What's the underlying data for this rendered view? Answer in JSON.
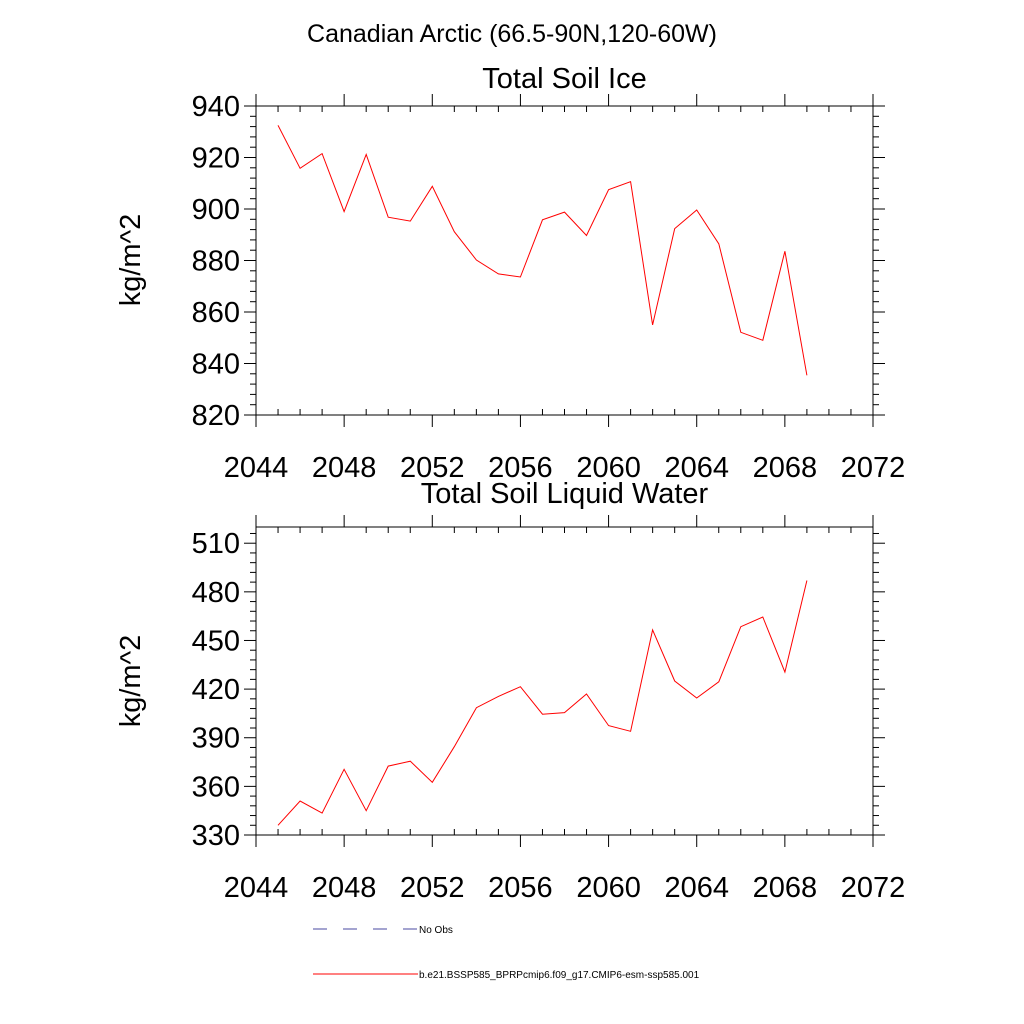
{
  "figure": {
    "title": "Canadian Arctic (66.5-90N,120-60W)"
  },
  "colors": {
    "model_line": "#ff0000",
    "obs_line": "#4a4aa0",
    "axis": "#000000"
  },
  "chart_data": [
    {
      "type": "line",
      "title": "Total Soil Ice",
      "xlabel": "",
      "ylabel": "kg/m^2",
      "xlim": [
        2044,
        2072
      ],
      "ylim": [
        820,
        940
      ],
      "x_major_ticks": [
        2044,
        2048,
        2052,
        2056,
        2060,
        2064,
        2068,
        2072
      ],
      "y_major_ticks": [
        820,
        840,
        860,
        880,
        900,
        920,
        940
      ],
      "grid": false,
      "series": [
        {
          "name": "b.e21.BSSP585_BPRPcmip6.f09_g17.CMIP6-esm-ssp585.001",
          "color": "#ff0000",
          "x": [
            2045,
            2046,
            2047,
            2048,
            2049,
            2050,
            2051,
            2052,
            2053,
            2054,
            2055,
            2056,
            2057,
            2058,
            2059,
            2060,
            2061,
            2062,
            2063,
            2064,
            2065,
            2066,
            2067,
            2068,
            2069
          ],
          "y": [
            932.5,
            915.8,
            921.5,
            899.0,
            921.2,
            896.8,
            895.3,
            908.8,
            891.2,
            880.2,
            874.8,
            873.6,
            895.8,
            898.8,
            889.7,
            907.5,
            910.6,
            855.0,
            892.4,
            899.6,
            886.5,
            852.1,
            849.0,
            883.6,
            835.4
          ]
        }
      ]
    },
    {
      "type": "line",
      "title": "Total Soil Liquid Water",
      "xlabel": "",
      "ylabel": "kg/m^2",
      "xlim": [
        2044,
        2072
      ],
      "ylim": [
        330,
        520
      ],
      "x_major_ticks": [
        2044,
        2048,
        2052,
        2056,
        2060,
        2064,
        2068,
        2072
      ],
      "y_major_ticks": [
        330,
        360,
        390,
        420,
        450,
        480,
        510
      ],
      "grid": false,
      "series": [
        {
          "name": "b.e21.BSSP585_BPRPcmip6.f09_g17.CMIP6-esm-ssp585.001",
          "color": "#ff0000",
          "x": [
            2045,
            2046,
            2047,
            2048,
            2049,
            2050,
            2051,
            2052,
            2053,
            2054,
            2055,
            2056,
            2057,
            2058,
            2059,
            2060,
            2061,
            2062,
            2063,
            2064,
            2065,
            2066,
            2067,
            2068,
            2069
          ],
          "y": [
            336.0,
            351.0,
            343.5,
            370.5,
            345.0,
            372.5,
            375.5,
            362.5,
            384.5,
            408.5,
            415.5,
            421.5,
            404.5,
            405.5,
            417.0,
            397.5,
            394.0,
            456.5,
            425.0,
            414.5,
            424.5,
            458.5,
            464.5,
            430.5,
            487.0
          ]
        }
      ]
    }
  ],
  "legend": {
    "placement": "bottom",
    "entries": [
      {
        "label": "No Obs",
        "style": "dashed",
        "color": "#4a4aa0"
      },
      {
        "label": "b.e21.BSSP585_BPRPcmip6.f09_g17.CMIP6-esm-ssp585.001",
        "style": "solid",
        "color": "#ff0000"
      }
    ]
  }
}
